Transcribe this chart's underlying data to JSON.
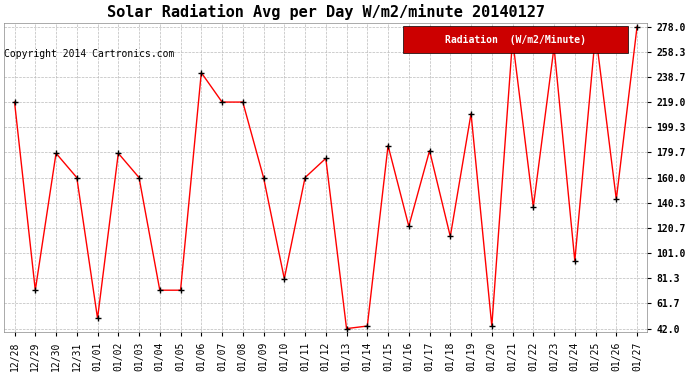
{
  "title": "Solar Radiation Avg per Day W/m2/minute 20140127",
  "copyright": "Copyright 2014 Cartronics.com",
  "legend_label": "Radiation  (W/m2/Minute)",
  "dates": [
    "12/28",
    "12/29",
    "12/30",
    "12/31",
    "01/01",
    "01/02",
    "01/03",
    "01/04",
    "01/05",
    "01/06",
    "01/07",
    "01/08",
    "01/09",
    "01/10",
    "01/11",
    "01/12",
    "01/13",
    "01/14",
    "01/15",
    "01/16",
    "01/17",
    "01/18",
    "01/19",
    "01/20",
    "01/21",
    "01/22",
    "01/23",
    "01/24",
    "01/25",
    "01/26",
    "01/27"
  ],
  "values": [
    219.0,
    72.0,
    179.0,
    160.0,
    50.0,
    179.0,
    160.0,
    72.0,
    72.0,
    242.0,
    219.0,
    219.0,
    160.0,
    81.0,
    160.0,
    175.0,
    42.0,
    44.0,
    185.0,
    122.0,
    181.0,
    114.0,
    210.0,
    44.0,
    268.0,
    137.0,
    262.0,
    95.0,
    273.0,
    143.0,
    278.0
  ],
  "yticks": [
    42.0,
    61.7,
    81.3,
    101.0,
    120.7,
    140.3,
    160.0,
    179.7,
    199.3,
    219.0,
    238.7,
    258.3,
    278.0
  ],
  "ymin": 42.0,
  "ymax": 278.0,
  "line_color": "red",
  "marker_color": "black",
  "bg_color": "#ffffff",
  "plot_bg_color": "#ffffff",
  "grid_color": "#bbbbbb",
  "legend_bg": "#cc0000",
  "legend_fg": "#ffffff",
  "title_fontsize": 11,
  "tick_fontsize": 7,
  "copyright_fontsize": 7
}
